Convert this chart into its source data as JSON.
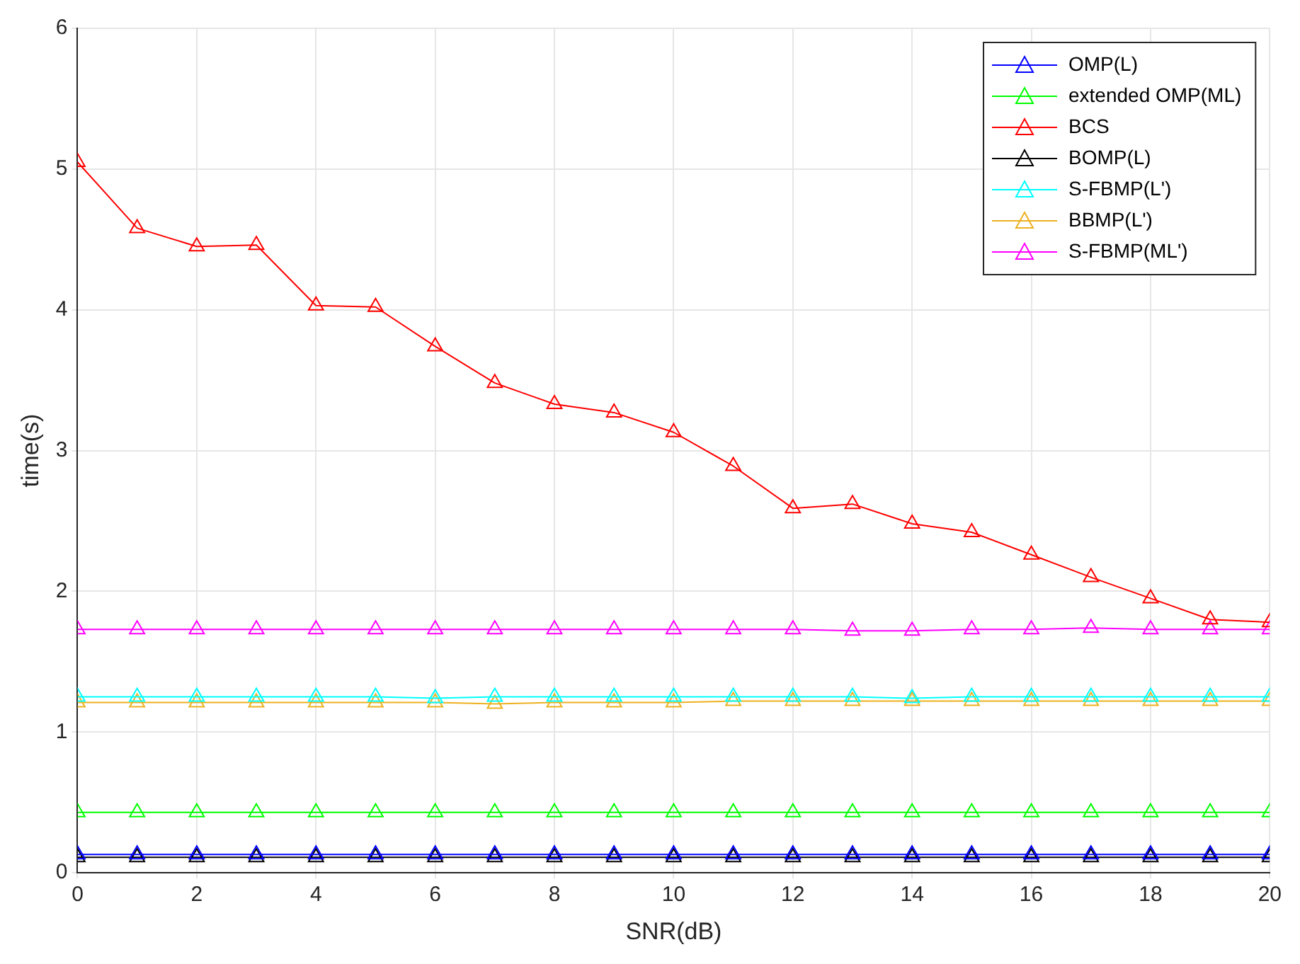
{
  "chart_data": {
    "type": "line",
    "xlabel": "SNR(dB)",
    "ylabel": "time(s)",
    "x": [
      0,
      1,
      2,
      3,
      4,
      5,
      6,
      7,
      8,
      9,
      10,
      11,
      12,
      13,
      14,
      15,
      16,
      17,
      18,
      19,
      20
    ],
    "xlim": [
      0,
      20
    ],
    "xticks": [
      0,
      2,
      4,
      6,
      8,
      10,
      12,
      14,
      16,
      18,
      20
    ],
    "ylim": [
      0,
      6
    ],
    "yticks": [
      0,
      1,
      2,
      3,
      4,
      5,
      6
    ],
    "grid": true,
    "legend": "top right",
    "marker": "triangle",
    "line_style": "solid",
    "series": [
      {
        "name": "OMP(L)",
        "color": "#0000ff",
        "values": [
          0.13,
          0.13,
          0.13,
          0.13,
          0.13,
          0.13,
          0.13,
          0.13,
          0.13,
          0.13,
          0.13,
          0.13,
          0.13,
          0.13,
          0.13,
          0.13,
          0.13,
          0.13,
          0.13,
          0.13,
          0.13
        ]
      },
      {
        "name": "extended OMP(ML)",
        "color": "#00ff00",
        "values": [
          0.43,
          0.43,
          0.43,
          0.43,
          0.43,
          0.43,
          0.43,
          0.43,
          0.43,
          0.43,
          0.43,
          0.43,
          0.43,
          0.43,
          0.43,
          0.43,
          0.43,
          0.43,
          0.43,
          0.43,
          0.43
        ]
      },
      {
        "name": "BCS",
        "color": "#ff0000",
        "values": [
          5.05,
          4.58,
          4.45,
          4.46,
          4.03,
          4.02,
          3.74,
          3.48,
          3.33,
          3.27,
          3.13,
          2.89,
          2.59,
          2.62,
          2.48,
          2.42,
          2.26,
          2.1,
          1.95,
          1.8,
          1.78
        ]
      },
      {
        "name": "BOMP(L)",
        "color": "#000000",
        "values": [
          0.11,
          0.11,
          0.11,
          0.11,
          0.11,
          0.11,
          0.11,
          0.11,
          0.11,
          0.11,
          0.11,
          0.11,
          0.11,
          0.11,
          0.11,
          0.11,
          0.11,
          0.11,
          0.11,
          0.11,
          0.11
        ]
      },
      {
        "name": "S-FBMP(L')",
        "color": "#00ffff",
        "values": [
          1.25,
          1.25,
          1.25,
          1.25,
          1.25,
          1.25,
          1.24,
          1.25,
          1.25,
          1.25,
          1.25,
          1.25,
          1.25,
          1.25,
          1.24,
          1.25,
          1.25,
          1.25,
          1.25,
          1.25,
          1.25
        ]
      },
      {
        "name": "BBMP(L')",
        "color": "#edb120",
        "values": [
          1.21,
          1.21,
          1.21,
          1.21,
          1.21,
          1.21,
          1.21,
          1.2,
          1.21,
          1.21,
          1.21,
          1.22,
          1.22,
          1.22,
          1.22,
          1.22,
          1.22,
          1.22,
          1.22,
          1.22,
          1.22
        ]
      },
      {
        "name": "S-FBMP(ML')",
        "color": "#ff00ff",
        "values": [
          1.73,
          1.73,
          1.73,
          1.73,
          1.73,
          1.73,
          1.73,
          1.73,
          1.73,
          1.73,
          1.73,
          1.73,
          1.73,
          1.72,
          1.72,
          1.73,
          1.73,
          1.74,
          1.73,
          1.73,
          1.73
        ]
      }
    ]
  }
}
